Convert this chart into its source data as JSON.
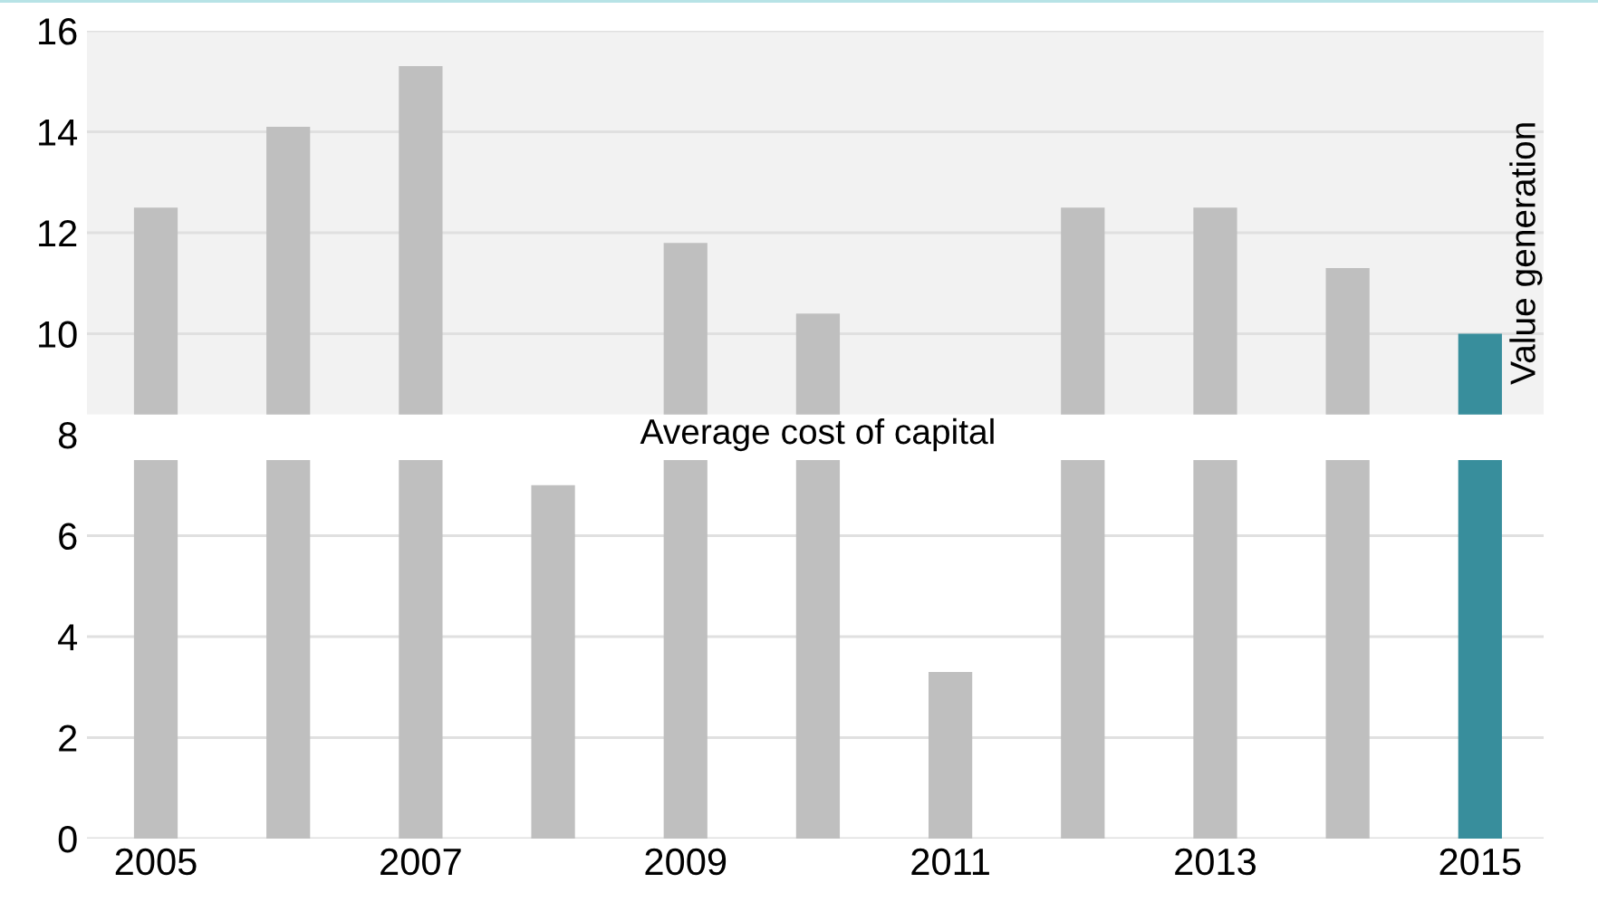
{
  "chart_data": {
    "type": "bar",
    "stacked": true,
    "categories": [
      "2005",
      null,
      "2007",
      null,
      "2009",
      null,
      "2011",
      null,
      "2013",
      null,
      "2015"
    ],
    "series": [
      {
        "colors": [
          "#bfbfbf",
          "#bfbfbf",
          "#bfbfbf",
          "#bfbfbf",
          "#bfbfbf",
          "#bfbfbf",
          "#bfbfbf",
          "#bfbfbf",
          "#bfbfbf",
          "#bfbfbf",
          "#388e9c"
        ],
        "values": [
          7.5,
          7.5,
          7.5,
          7.0,
          7.5,
          7.5,
          3.3,
          7.5,
          7.5,
          7.5,
          7.5
        ]
      },
      {
        "colors": [
          "#bfbfbf",
          "#bfbfbf",
          "#bfbfbf",
          "#bfbfbf",
          "#bfbfbf",
          "#bfbfbf",
          "#bfbfbf",
          "#bfbfbf",
          "#bfbfbf",
          "#bfbfbf",
          "#388e9c"
        ],
        "values": [
          5.0,
          6.6,
          7.8,
          null,
          4.3,
          2.9,
          null,
          5.0,
          5.0,
          3.8,
          2.5
        ]
      }
    ],
    "ylim": [
      0,
      16
    ],
    "yticks": [
      0,
      2,
      4,
      6,
      8,
      10,
      12,
      14,
      16
    ],
    "grid": "y",
    "bands": [
      {
        "axis": "y",
        "from": 8.4,
        "to": 16,
        "label": "Value generation",
        "color": "#f2f2f2"
      },
      {
        "axis": "y",
        "from": 7.5,
        "to": 8.4,
        "label": "Average cost of capital",
        "color": "#ffffff"
      }
    ]
  }
}
